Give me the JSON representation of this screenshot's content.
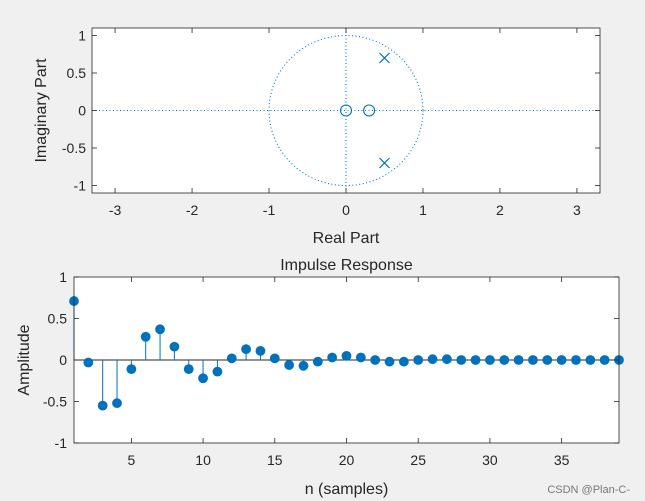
{
  "colors": {
    "accent": "#0072bd",
    "axes_bg": "#ffffff",
    "figure_bg": "#f0f0f0",
    "axis_line": "#262626"
  },
  "watermark": "CSDN @Plan-C-",
  "chart_data": [
    {
      "type": "scatter",
      "subtype": "pole-zero",
      "title": "",
      "xlabel": "Real Part",
      "ylabel": "Imaginary Part",
      "xlim": [
        -3.3,
        3.3
      ],
      "ylim": [
        -1.1,
        1.1
      ],
      "xticks": [
        -3,
        -2,
        -1,
        0,
        1,
        2,
        3
      ],
      "xtick_labels": [
        "-3",
        "-2",
        "-1",
        "0",
        "1",
        "2",
        "3"
      ],
      "yticks": [
        1,
        0.5,
        0,
        -0.5,
        -1
      ],
      "ytick_labels": [
        "1",
        "0.5",
        "0",
        "-0.5",
        "-1"
      ],
      "unit_circle": {
        "radius": 1,
        "style": "dotted"
      },
      "zeros": [
        {
          "re": 0,
          "im": 0
        },
        {
          "re": 0.3,
          "im": 0
        }
      ],
      "poles": [
        {
          "re": 0.5,
          "im": 0.7
        },
        {
          "re": 0.5,
          "im": -0.7
        }
      ]
    },
    {
      "type": "stem",
      "title": "Impulse Response",
      "xlabel": "n (samples)",
      "ylabel": "Amplitude",
      "xlim": [
        1,
        39
      ],
      "ylim": [
        -1,
        1
      ],
      "xticks": [
        5,
        10,
        15,
        20,
        25,
        30,
        35
      ],
      "xtick_labels": [
        "5",
        "10",
        "15",
        "20",
        "25",
        "30",
        "35"
      ],
      "yticks": [
        1,
        0.5,
        0,
        -0.5,
        -1
      ],
      "ytick_labels": [
        "1",
        "0.5",
        "0",
        "-0.5",
        "-1"
      ],
      "x": [
        1,
        2,
        3,
        4,
        5,
        6,
        7,
        8,
        9,
        10,
        11,
        12,
        13,
        14,
        15,
        16,
        17,
        18,
        19,
        20,
        21,
        22,
        23,
        24,
        25,
        26,
        27,
        28,
        29,
        30,
        31,
        32,
        33,
        34,
        35,
        36,
        37,
        38,
        39
      ],
      "values": [
        0.71,
        -0.03,
        -0.55,
        -0.52,
        -0.11,
        0.28,
        0.37,
        0.16,
        -0.11,
        -0.22,
        -0.14,
        0.02,
        0.13,
        0.11,
        0.02,
        -0.06,
        -0.07,
        -0.02,
        0.03,
        0.05,
        0.03,
        0.0,
        -0.02,
        -0.02,
        0.0,
        0.01,
        0.01,
        0.0,
        0.0,
        0.0,
        0.0,
        0.0,
        0.0,
        0.0,
        0.0,
        0.0,
        0.0,
        0.0,
        0.0
      ]
    }
  ]
}
